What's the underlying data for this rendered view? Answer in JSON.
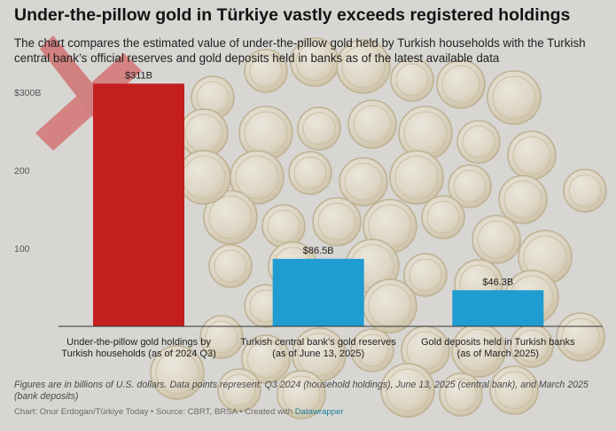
{
  "header": {
    "title": "Under-the-pillow gold in Türkiye vastly exceeds registered holdings",
    "subtitle": "The chart compares the estimated value of under-the-pillow gold held by Turkish households with the Turkish central bank’s official reserves and gold deposits held in banks as of the latest available data"
  },
  "chart_data": {
    "type": "bar",
    "categories": [
      [
        "Under-the-pillow gold holdings by",
        "Turkish households (as of 2024 Q3)"
      ],
      [
        "Turkish central bank’s gold reserves",
        "(as of June 13, 2025)"
      ],
      [
        "Gold deposits held in Turkish banks",
        "(as of March 2025)"
      ]
    ],
    "values": [
      311,
      86.5,
      46.3
    ],
    "value_labels": [
      "$311B",
      "$86.5B",
      "$46.3B"
    ],
    "colors": [
      "#c41f1f",
      "#1f9cd1",
      "#1f9cd1"
    ],
    "ylim": [
      0,
      300
    ],
    "yticks": [
      {
        "value": 300,
        "label": "$300B"
      },
      {
        "value": 200,
        "label": "200"
      },
      {
        "value": 100,
        "label": "100"
      }
    ],
    "grid": false
  },
  "footer": {
    "notes": "Figures are in billions of U.S. dollars. Data points represent: Q3 2024 (household holdings), June 13, 2025 (central bank), and March 2025 (bank deposits)",
    "source_text": "Chart: Onur Erdogan/Türkiye Today • Source: CBRT, BRSA • Created with ",
    "source_link": "Datawrapper"
  }
}
